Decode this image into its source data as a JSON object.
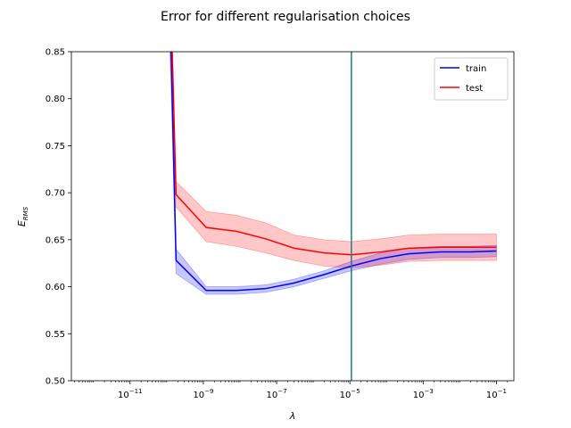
{
  "chart_data": {
    "type": "line",
    "title": "Error for different regularisation choices",
    "xlabel": "λ",
    "ylabel_main": "E",
    "ylabel_sub": "RMS",
    "xscale": "log",
    "xlim": [
      2.5e-13,
      0.3
    ],
    "ylim": [
      0.5,
      0.85
    ],
    "xticks": [
      {
        "value": 1e-11,
        "base": "10",
        "exp": "−11"
      },
      {
        "value": 1e-09,
        "base": "10",
        "exp": "−9"
      },
      {
        "value": 1e-07,
        "base": "10",
        "exp": "−7"
      },
      {
        "value": 1e-05,
        "base": "10",
        "exp": "−5"
      },
      {
        "value": 0.001,
        "base": "10",
        "exp": "−3"
      },
      {
        "value": 0.1,
        "base": "10",
        "exp": "−1"
      }
    ],
    "yticks": [
      {
        "value": 0.5,
        "label": "0.50"
      },
      {
        "value": 0.55,
        "label": "0.55"
      },
      {
        "value": 0.6,
        "label": "0.60"
      },
      {
        "value": 0.65,
        "label": "0.65"
      },
      {
        "value": 0.7,
        "label": "0.70"
      },
      {
        "value": 0.75,
        "label": "0.75"
      },
      {
        "value": 0.8,
        "label": "0.80"
      },
      {
        "value": 0.85,
        "label": "0.85"
      }
    ],
    "vline": {
      "x": 1.1e-05,
      "color": "#1f7a8c"
    },
    "legend_position": "top-right",
    "grid": false,
    "series": [
      {
        "name": "train",
        "color": "#0000ff",
        "band_color": "#0000ff",
        "points": [
          {
            "x": 1e-10,
            "y": 1.0,
            "lo": 0.95,
            "hi": 1.05
          },
          {
            "x": 1.3e-10,
            "y": 0.86,
            "lo": 0.82,
            "hi": 0.9
          },
          {
            "x": 1.8e-10,
            "y": 0.628,
            "lo": 0.614,
            "hi": 0.64
          },
          {
            "x": 1.2e-09,
            "y": 0.596,
            "lo": 0.592,
            "hi": 0.6
          },
          {
            "x": 8e-09,
            "y": 0.596,
            "lo": 0.592,
            "hi": 0.6
          },
          {
            "x": 5e-08,
            "y": 0.598,
            "lo": 0.594,
            "hi": 0.602
          },
          {
            "x": 3e-07,
            "y": 0.604,
            "lo": 0.6,
            "hi": 0.608
          },
          {
            "x": 2e-06,
            "y": 0.613,
            "lo": 0.609,
            "hi": 0.617
          },
          {
            "x": 1.1e-05,
            "y": 0.622,
            "lo": 0.617,
            "hi": 0.627
          },
          {
            "x": 7e-05,
            "y": 0.63,
            "lo": 0.624,
            "hi": 0.636
          },
          {
            "x": 0.0004,
            "y": 0.635,
            "lo": 0.629,
            "hi": 0.641
          },
          {
            "x": 0.003,
            "y": 0.637,
            "lo": 0.631,
            "hi": 0.643
          },
          {
            "x": 0.02,
            "y": 0.637,
            "lo": 0.631,
            "hi": 0.643
          },
          {
            "x": 0.1,
            "y": 0.638,
            "lo": 0.632,
            "hi": 0.644
          }
        ]
      },
      {
        "name": "test",
        "color": "#ff0000",
        "band_color": "#ff0000",
        "points": [
          {
            "x": 1.3e-10,
            "y": 0.9,
            "lo": 0.86,
            "hi": 0.93
          },
          {
            "x": 1.8e-10,
            "y": 0.698,
            "lo": 0.685,
            "hi": 0.712
          },
          {
            "x": 1.2e-09,
            "y": 0.663,
            "lo": 0.648,
            "hi": 0.68
          },
          {
            "x": 8e-09,
            "y": 0.659,
            "lo": 0.643,
            "hi": 0.676
          },
          {
            "x": 5e-08,
            "y": 0.651,
            "lo": 0.636,
            "hi": 0.668
          },
          {
            "x": 3e-07,
            "y": 0.641,
            "lo": 0.628,
            "hi": 0.655
          },
          {
            "x": 2e-06,
            "y": 0.636,
            "lo": 0.622,
            "hi": 0.65
          },
          {
            "x": 1.1e-05,
            "y": 0.634,
            "lo": 0.62,
            "hi": 0.648
          },
          {
            "x": 7e-05,
            "y": 0.637,
            "lo": 0.623,
            "hi": 0.651
          },
          {
            "x": 0.0004,
            "y": 0.641,
            "lo": 0.627,
            "hi": 0.655
          },
          {
            "x": 0.003,
            "y": 0.642,
            "lo": 0.628,
            "hi": 0.656
          },
          {
            "x": 0.02,
            "y": 0.642,
            "lo": 0.628,
            "hi": 0.656
          },
          {
            "x": 0.1,
            "y": 0.642,
            "lo": 0.628,
            "hi": 0.656
          }
        ]
      }
    ]
  }
}
